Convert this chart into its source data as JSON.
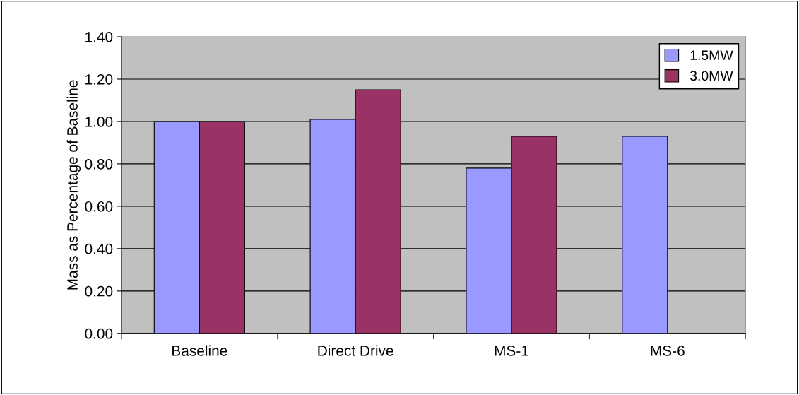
{
  "chart_data": {
    "type": "bar",
    "ylabel": "Mass as Percentage of Baseline",
    "categories": [
      "Baseline",
      "Direct Drive",
      "MS-1",
      "MS-6"
    ],
    "series": [
      {
        "name": "1.5MW",
        "color": "#9999ff",
        "values": [
          1.0,
          1.01,
          0.78,
          0.93
        ]
      },
      {
        "name": "3.0MW",
        "color": "#993366",
        "values": [
          1.0,
          1.15,
          0.93,
          null
        ]
      }
    ],
    "ylim": [
      0,
      1.4
    ],
    "yticks": [
      {
        "value": 0,
        "label": "0.00"
      },
      {
        "value": 0.2,
        "label": "0.20"
      },
      {
        "value": 0.4,
        "label": "0.40"
      },
      {
        "value": 0.6,
        "label": "0.60"
      },
      {
        "value": 0.8,
        "label": "0.80"
      },
      {
        "value": 1.0,
        "label": "1.00"
      },
      {
        "value": 1.2,
        "label": "1.20"
      },
      {
        "value": 1.4,
        "label": "1.40"
      }
    ],
    "grid": "y",
    "legend": "top right"
  }
}
